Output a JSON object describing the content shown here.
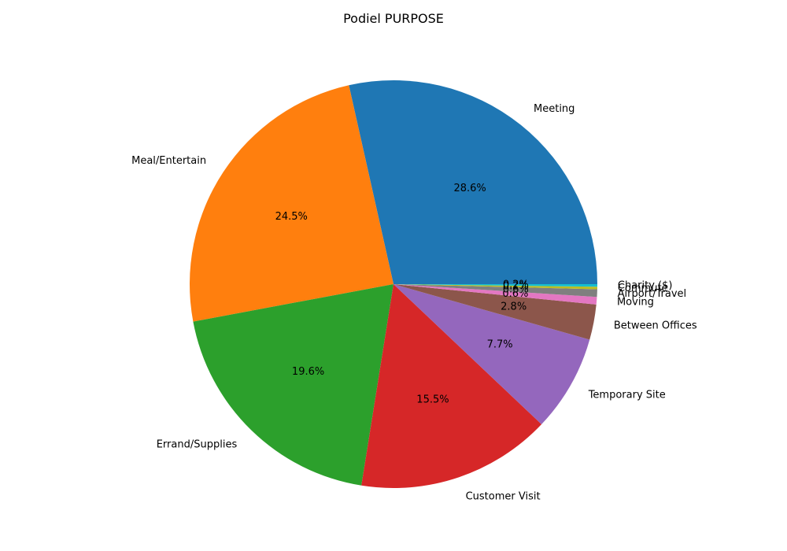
{
  "chart_data": {
    "type": "pie",
    "title": "Podiel PURPOSE",
    "start_angle_deg": 0,
    "direction": "counterclockwise",
    "slices": [
      {
        "label": "Meeting",
        "value": 28.6,
        "pct_label": "28.6%",
        "color": "#1f77b4"
      },
      {
        "label": "Meal/Entertain",
        "value": 24.5,
        "pct_label": "24.5%",
        "color": "#ff7f0e"
      },
      {
        "label": "Errand/Supplies",
        "value": 19.6,
        "pct_label": "19.6%",
        "color": "#2ca02c"
      },
      {
        "label": "Customer Visit",
        "value": 15.5,
        "pct_label": "15.5%",
        "color": "#d62728"
      },
      {
        "label": "Temporary Site",
        "value": 7.7,
        "pct_label": "7.7%",
        "color": "#9467bd"
      },
      {
        "label": "Between Offices",
        "value": 2.8,
        "pct_label": "2.8%",
        "color": "#8c564b"
      },
      {
        "label": "Moving",
        "value": 0.6,
        "pct_label": "0.6%",
        "color": "#e377c2"
      },
      {
        "label": "Airport/Travel",
        "value": 0.6,
        "pct_label": "0.6%",
        "color": "#7f7f7f"
      },
      {
        "label": "Commute",
        "value": 0.2,
        "pct_label": "0.2%",
        "color": "#bcbd22"
      },
      {
        "label": "Charity ($)",
        "value": 0.2,
        "pct_label": "0.2%",
        "color": "#17becf"
      }
    ]
  }
}
